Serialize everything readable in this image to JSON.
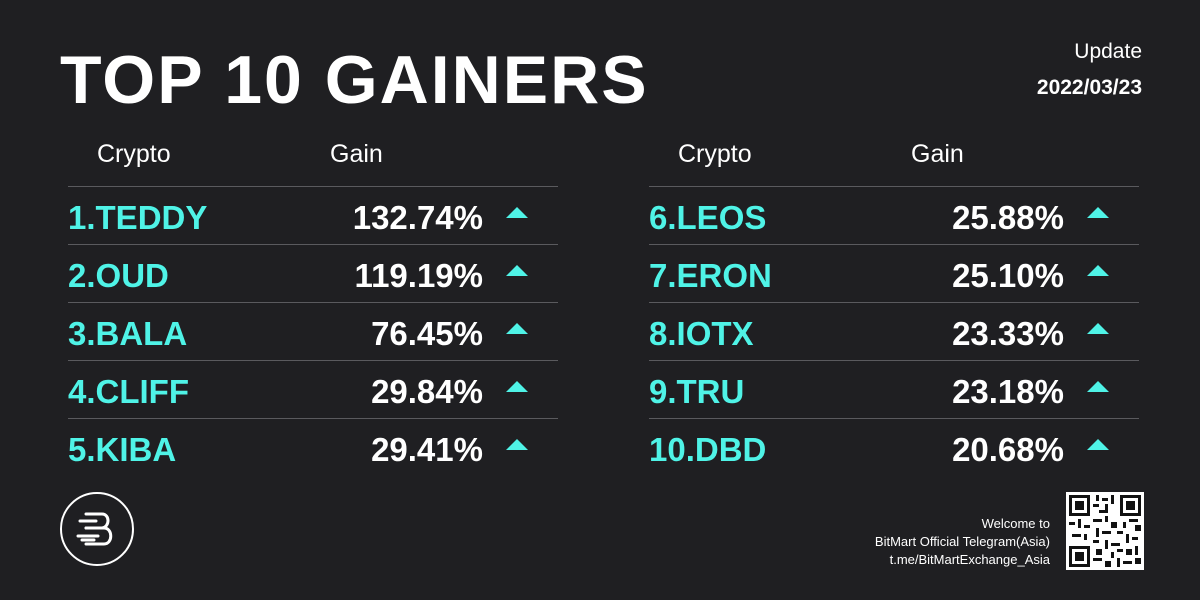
{
  "title": "TOP 10 GAINERS",
  "update": {
    "label": "Update",
    "date": "2022/03/23"
  },
  "headers": {
    "crypto": "Crypto",
    "gain": "Gain"
  },
  "left_rows": [
    {
      "name": "1.TEDDY",
      "gain": "132.74%"
    },
    {
      "name": "2.OUD",
      "gain": "119.19%"
    },
    {
      "name": "3.BALA",
      "gain": "76.45%"
    },
    {
      "name": "4.CLIFF",
      "gain": "29.84%"
    },
    {
      "name": "5.KIBA",
      "gain": "29.41%"
    }
  ],
  "right_rows": [
    {
      "name": "6.LEOS",
      "gain": "25.88%"
    },
    {
      "name": "7.ERON",
      "gain": "25.10%"
    },
    {
      "name": "8.IOTX",
      "gain": "23.33%"
    },
    {
      "name": "9.TRU",
      "gain": "23.18%"
    },
    {
      "name": "10.DBD",
      "gain": "20.68%"
    }
  ],
  "footer": {
    "line1": "Welcome to",
    "line2": "BitMart Official Telegram(Asia)",
    "line3": "t.me/BitMartExchange_Asia"
  },
  "colors": {
    "accent": "#4ff3e7",
    "background": "#1f1f22",
    "divider": "#5a5a5e"
  },
  "icons": {
    "logo": "bitmart-logo-icon",
    "qr": "qr-code-icon",
    "arrow": "arrow-up-icon"
  }
}
